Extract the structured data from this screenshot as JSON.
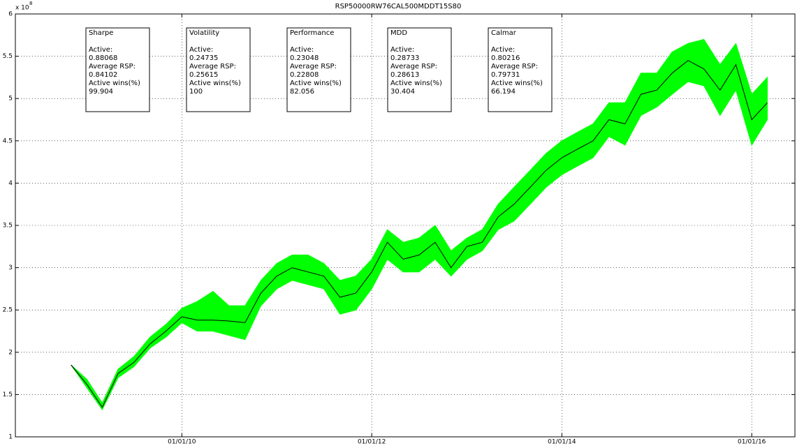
{
  "chart_data": {
    "type": "line",
    "title": "RSP50000RW76CAL500MDDT15S80",
    "y_multiplier": "x 10",
    "y_multiplier_power": 8,
    "x": [
      "2008-11-01",
      "2009-01-01",
      "2009-03-01",
      "2009-05-01",
      "2009-07-01",
      "2009-09-01",
      "2009-11-01",
      "2010-01-01",
      "2010-03-01",
      "2010-05-01",
      "2010-07-01",
      "2010-09-01",
      "2010-11-01",
      "2011-01-01",
      "2011-03-01",
      "2011-05-01",
      "2011-07-01",
      "2011-09-01",
      "2011-11-01",
      "2012-01-01",
      "2012-03-01",
      "2012-05-01",
      "2012-07-01",
      "2012-09-01",
      "2012-11-01",
      "2013-01-01",
      "2013-03-01",
      "2013-05-01",
      "2013-07-01",
      "2013-09-01",
      "2013-11-01",
      "2014-01-01",
      "2014-03-01",
      "2014-05-01",
      "2014-07-01",
      "2014-09-01",
      "2014-11-01",
      "2015-01-01",
      "2015-03-01",
      "2015-05-01",
      "2015-07-01",
      "2015-09-01",
      "2015-11-01",
      "2016-01-01",
      "2016-03-01"
    ],
    "series": [
      {
        "color": "#00ff00",
        "low": [
          1.85,
          1.58,
          1.32,
          1.7,
          1.83,
          2.05,
          2.18,
          2.35,
          2.25,
          2.25,
          2.2,
          2.15,
          2.55,
          2.75,
          2.85,
          2.8,
          2.75,
          2.45,
          2.5,
          2.75,
          3.1,
          2.95,
          2.95,
          3.1,
          2.9,
          3.1,
          3.2,
          3.45,
          3.55,
          3.75,
          3.95,
          4.1,
          4.2,
          4.3,
          4.55,
          4.45,
          4.8,
          4.9,
          5.05,
          5.2,
          5.15,
          4.8,
          5.1,
          4.45,
          4.75
        ],
        "high": [
          1.85,
          1.68,
          1.4,
          1.8,
          1.95,
          2.18,
          2.33,
          2.52,
          2.6,
          2.72,
          2.55,
          2.55,
          2.85,
          3.05,
          3.15,
          3.15,
          3.05,
          2.85,
          2.9,
          3.1,
          3.45,
          3.3,
          3.35,
          3.5,
          3.2,
          3.35,
          3.45,
          3.75,
          3.95,
          4.15,
          4.35,
          4.5,
          4.6,
          4.7,
          4.95,
          4.95,
          5.3,
          5.3,
          5.55,
          5.65,
          5.7,
          5.4,
          5.65,
          5.05,
          5.25
        ]
      },
      {
        "color": "#000000",
        "values": [
          1.85,
          1.62,
          1.35,
          1.75,
          1.88,
          2.1,
          2.25,
          2.42,
          2.38,
          2.38,
          2.37,
          2.35,
          2.7,
          2.9,
          3.0,
          2.95,
          2.9,
          2.65,
          2.7,
          2.95,
          3.3,
          3.1,
          3.15,
          3.3,
          3.0,
          3.25,
          3.3,
          3.6,
          3.75,
          3.95,
          4.15,
          4.3,
          4.4,
          4.5,
          4.75,
          4.7,
          5.05,
          5.1,
          5.3,
          5.45,
          5.35,
          5.1,
          5.4,
          4.75,
          4.95
        ]
      }
    ],
    "xlim": [
      "2008-04-01",
      "2016-06-15"
    ],
    "xticks": [
      {
        "value": "2010-01-01",
        "label": "01/01/10"
      },
      {
        "value": "2012-01-01",
        "label": "01/01/12"
      },
      {
        "value": "2014-01-01",
        "label": "01/01/14"
      },
      {
        "value": "2016-01-01",
        "label": "01/01/16"
      }
    ],
    "ylim": [
      1,
      6
    ],
    "yticks": [
      1,
      1.5,
      2,
      2.5,
      3,
      3.5,
      4,
      4.5,
      5,
      5.5,
      6
    ],
    "grid": true,
    "stats_boxes": [
      {
        "title": "Sharpe",
        "lines": [
          "Active:",
          0.88068,
          "Average RSP:",
          0.84102,
          "Active wins(%)",
          99.904
        ]
      },
      {
        "title": "Volatility",
        "lines": [
          "Active:",
          0.24735,
          "Average RSP:",
          0.25615,
          "Active wins(%)",
          100
        ]
      },
      {
        "title": "Performance",
        "lines": [
          "Active:",
          0.23048,
          "Average RSP:",
          0.22808,
          "Active wins(%)",
          82.056
        ]
      },
      {
        "title": "MDD",
        "lines": [
          "Active:",
          0.28733,
          "Average RSP:",
          0.28613,
          "Active wins(%)",
          30.404
        ]
      },
      {
        "title": "Calmar",
        "lines": [
          "Active:",
          0.80216,
          "Average RSP:",
          0.79731,
          "Active wins(%)",
          66.194
        ]
      }
    ]
  }
}
